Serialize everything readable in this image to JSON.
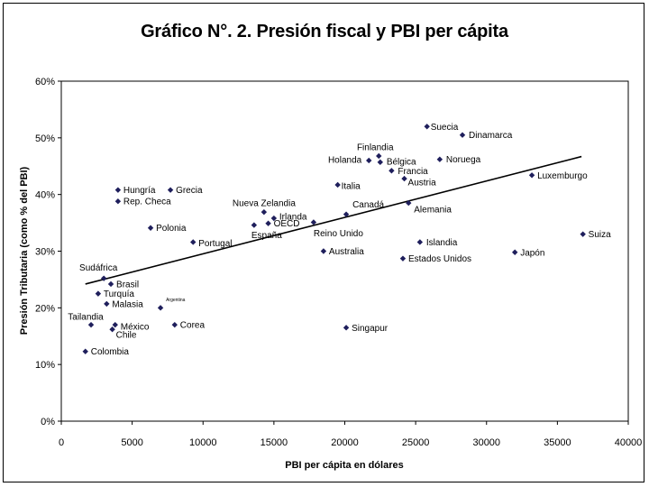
{
  "chart_data": {
    "type": "scatter",
    "title": "Gráfico N°. 2. Presión fiscal y PBI per cápita",
    "xlabel": "PBI per cápita en dólares",
    "ylabel": "Presión Tributaria (como % del PBI)",
    "xlim": [
      0,
      40000
    ],
    "ylim": [
      0,
      60
    ],
    "xticks": [
      0,
      5000,
      10000,
      15000,
      20000,
      25000,
      30000,
      35000,
      40000
    ],
    "xtick_labels": [
      "0",
      "5000",
      "10000",
      "15000",
      "20000",
      "25000",
      "30000",
      "35000",
      "40000"
    ],
    "yticks": [
      0,
      10,
      20,
      30,
      40,
      50,
      60
    ],
    "ytick_labels": [
      "0%",
      "10%",
      "20%",
      "30%",
      "40%",
      "50%",
      "60%"
    ],
    "marker_color": "#1f1f5c",
    "trendline": {
      "x1": 1700,
      "y1": 24.2,
      "x2": 36700,
      "y2": 46.7
    },
    "points": [
      {
        "label": "Suecia",
        "x": 25800,
        "y": 52.0,
        "anchor": "start",
        "dx": 4,
        "dy": 0
      },
      {
        "label": "Dinamarca",
        "x": 28300,
        "y": 50.5,
        "anchor": "start",
        "dx": 7,
        "dy": 0
      },
      {
        "label": "Finlandia",
        "x": 22400,
        "y": 46.8,
        "anchor": "middle",
        "dx": -4,
        "dy": -10
      },
      {
        "label": "Holanda",
        "x": 21700,
        "y": 46.0,
        "anchor": "end",
        "dx": -8,
        "dy": -1
      },
      {
        "label": "Bélgica",
        "x": 22500,
        "y": 45.7,
        "anchor": "start",
        "dx": 7,
        "dy": -1
      },
      {
        "label": "Noruega",
        "x": 26700,
        "y": 46.2,
        "anchor": "start",
        "dx": 7,
        "dy": 0
      },
      {
        "label": "Francia",
        "x": 23300,
        "y": 44.2,
        "anchor": "start",
        "dx": 7,
        "dy": 0
      },
      {
        "label": "Austria",
        "x": 24200,
        "y": 42.8,
        "anchor": "start",
        "dx": 4,
        "dy": 4
      },
      {
        "label": "Luxemburgo",
        "x": 33200,
        "y": 43.4,
        "anchor": "start",
        "dx": 6,
        "dy": 0
      },
      {
        "label": "Italia",
        "x": 19500,
        "y": 41.7,
        "anchor": "start",
        "dx": 4,
        "dy": 1
      },
      {
        "label": "Canadá",
        "x": 20100,
        "y": 36.5,
        "anchor": "start",
        "dx": 7,
        "dy": -11
      },
      {
        "label": "Alemania",
        "x": 24500,
        "y": 38.5,
        "anchor": "start",
        "dx": 6,
        "dy": 7
      },
      {
        "label": "Hungría",
        "x": 4000,
        "y": 40.8,
        "anchor": "start",
        "dx": 6,
        "dy": 0
      },
      {
        "label": "Grecia",
        "x": 7700,
        "y": 40.8,
        "anchor": "start",
        "dx": 6,
        "dy": 0
      },
      {
        "label": "Rep. Checa",
        "x": 4000,
        "y": 38.8,
        "anchor": "start",
        "dx": 6,
        "dy": 0
      },
      {
        "label": "Nueva Zelandia",
        "x": 14300,
        "y": 36.9,
        "anchor": "middle",
        "dx": 0,
        "dy": -10
      },
      {
        "label": "Irlanda",
        "x": 15000,
        "y": 35.8,
        "anchor": "start",
        "dx": 6,
        "dy": -2
      },
      {
        "label": "OECD",
        "x": 14600,
        "y": 34.9,
        "anchor": "start",
        "dx": 6,
        "dy": 0
      },
      {
        "label": "España",
        "x": 13600,
        "y": 34.6,
        "anchor": "start",
        "dx": -3,
        "dy": 11
      },
      {
        "label": "Reino Unido",
        "x": 17800,
        "y": 35.1,
        "anchor": "start",
        "dx": 0,
        "dy": 12
      },
      {
        "label": "Polonia",
        "x": 6300,
        "y": 34.1,
        "anchor": "start",
        "dx": 6,
        "dy": 0
      },
      {
        "label": "Portugal",
        "x": 9300,
        "y": 31.6,
        "anchor": "start",
        "dx": 6,
        "dy": 1
      },
      {
        "label": "Islandia",
        "x": 25300,
        "y": 31.6,
        "anchor": "start",
        "dx": 7,
        "dy": 0
      },
      {
        "label": "Suiza",
        "x": 36800,
        "y": 33.0,
        "anchor": "start",
        "dx": 6,
        "dy": 0
      },
      {
        "label": "Australia",
        "x": 18500,
        "y": 30.0,
        "anchor": "start",
        "dx": 6,
        "dy": 0
      },
      {
        "label": "Japón",
        "x": 32000,
        "y": 29.8,
        "anchor": "start",
        "dx": 6,
        "dy": 0
      },
      {
        "label": "Estados Unidos",
        "x": 24100,
        "y": 28.7,
        "anchor": "start",
        "dx": 6,
        "dy": 0
      },
      {
        "label": "Sudáfrica",
        "x": 3000,
        "y": 25.2,
        "anchor": "middle",
        "dx": -6,
        "dy": -12
      },
      {
        "label": "Brasil",
        "x": 3500,
        "y": 24.2,
        "anchor": "start",
        "dx": 6,
        "dy": 0
      },
      {
        "label": "Turquía",
        "x": 2600,
        "y": 22.5,
        "anchor": "start",
        "dx": 6,
        "dy": 0
      },
      {
        "label": "Malasia",
        "x": 3200,
        "y": 20.7,
        "anchor": "start",
        "dx": 6,
        "dy": 0
      },
      {
        "label": "Argentina",
        "x": 7000,
        "y": 20.0,
        "anchor": "start",
        "dx": 6,
        "dy": -11,
        "small": true
      },
      {
        "label": "Tailandia",
        "x": 2100,
        "y": 17.0,
        "anchor": "middle",
        "dx": -6,
        "dy": -9
      },
      {
        "label": "México",
        "x": 3800,
        "y": 17.0,
        "anchor": "start",
        "dx": 6,
        "dy": 2
      },
      {
        "label": "Chile",
        "x": 3600,
        "y": 16.2,
        "anchor": "start",
        "dx": 4,
        "dy": 6
      },
      {
        "label": "Corea",
        "x": 8000,
        "y": 17.0,
        "anchor": "start",
        "dx": 6,
        "dy": 0
      },
      {
        "label": "Singapur",
        "x": 20100,
        "y": 16.5,
        "anchor": "start",
        "dx": 6,
        "dy": 0
      },
      {
        "label": "Colombia",
        "x": 1700,
        "y": 12.3,
        "anchor": "start",
        "dx": 6,
        "dy": 0
      }
    ]
  }
}
